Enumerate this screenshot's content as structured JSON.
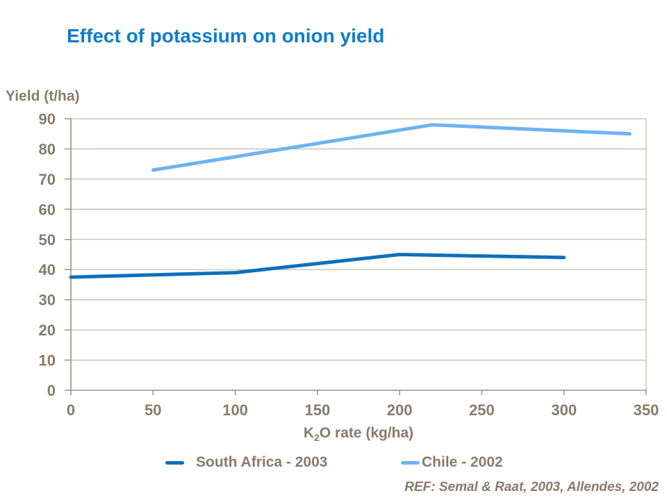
{
  "slide": {
    "title": "Effect of potassium on onion yield",
    "ref": "REF: Semal & Raat, 2003, Allendes, 2002"
  },
  "colors": {
    "title": "#0e7ccd",
    "text": "#8a7a69",
    "grid": "#c4bcb0",
    "axis": "#9a9080",
    "background": "#ffffff"
  },
  "chart_data": {
    "type": "line",
    "title": "Effect of potassium on onion yield",
    "ylabel": "Yield (t/ha)",
    "xlabel": {
      "base": "K",
      "sub": "2",
      "rest": "O rate (kg/ha)"
    },
    "xlim": [
      0,
      350
    ],
    "ylim": [
      0,
      90
    ],
    "x_ticks": [
      0,
      50,
      100,
      150,
      200,
      250,
      300,
      350
    ],
    "y_ticks": [
      0,
      10,
      20,
      30,
      40,
      50,
      60,
      70,
      80,
      90
    ],
    "grid": "horizontal-only",
    "legend_position": "bottom",
    "series": [
      {
        "name": "South Africa - 2003",
        "color": "#0d6fbc",
        "points": [
          [
            0,
            37.5
          ],
          [
            100,
            39
          ],
          [
            200,
            45
          ],
          [
            300,
            44
          ]
        ]
      },
      {
        "name": "Chile - 2002",
        "color": "#6db3f2",
        "points": [
          [
            50,
            73
          ],
          [
            220,
            88
          ],
          [
            340,
            85
          ]
        ]
      }
    ]
  }
}
